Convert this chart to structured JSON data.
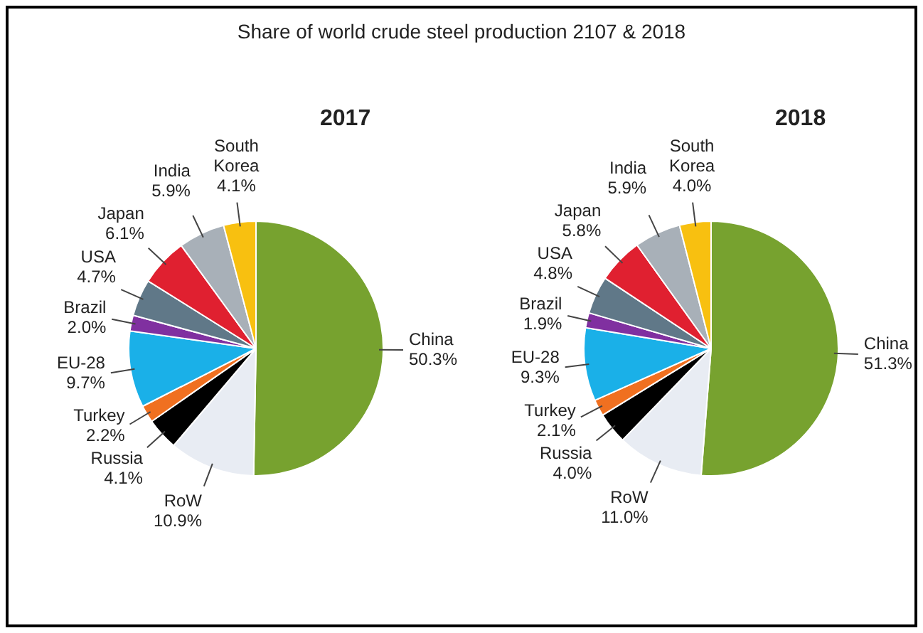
{
  "chart_data": [
    {
      "type": "pie",
      "title": "Share of world crude steel production 2107 & 2018",
      "subtitle": "2017",
      "categories": [
        "China",
        "RoW",
        "Russia",
        "Turkey",
        "EU-28",
        "Brazil",
        "USA",
        "Japan",
        "India",
        "South Korea"
      ],
      "values": [
        50.3,
        10.9,
        4.1,
        2.2,
        9.7,
        2.0,
        4.7,
        6.1,
        5.9,
        4.1
      ],
      "value_labels": [
        "50.3%",
        "10.9%",
        "4.1%",
        "2.2%",
        "9.7%",
        "2.0%",
        "4.7%",
        "6.1%",
        "5.9%",
        "4.1%"
      ],
      "colors": [
        "#77a22f",
        "#e8ecf3",
        "#000000",
        "#f07020",
        "#1ab0e8",
        "#8030a0",
        "#607888",
        "#e02030",
        "#a8b0b8",
        "#f8c010"
      ],
      "legend": false
    },
    {
      "type": "pie",
      "title": "2018",
      "categories": [
        "China",
        "RoW",
        "Russia",
        "Turkey",
        "EU-28",
        "Brazil",
        "USA",
        "Japan",
        "India",
        "South Korea"
      ],
      "values": [
        51.3,
        11.0,
        4.0,
        2.1,
        9.3,
        1.9,
        4.8,
        5.8,
        5.9,
        4.0
      ],
      "value_labels": [
        "51.3%",
        "11.0%",
        "4.0%",
        "2.1%",
        "9.3%",
        "1.9%",
        "4.8%",
        "5.8%",
        "5.9%",
        "4.0%"
      ],
      "colors": [
        "#77a22f",
        "#e8ecf3",
        "#000000",
        "#f07020",
        "#1ab0e8",
        "#8030a0",
        "#607888",
        "#e02030",
        "#a8b0b8",
        "#f8c010"
      ],
      "legend": false
    }
  ]
}
